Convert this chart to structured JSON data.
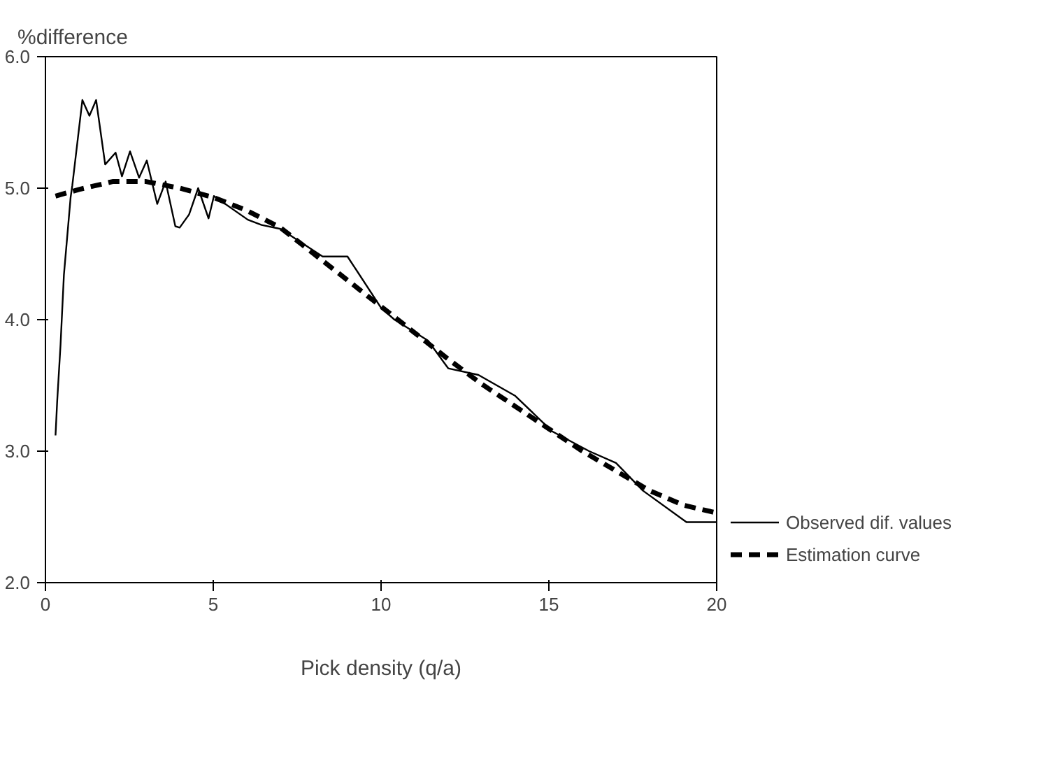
{
  "chart_data": {
    "type": "line",
    "xlabel": "Pick density (q/a)",
    "ylabel": "%difference",
    "xlim": [
      0,
      20
    ],
    "xticks": [
      0,
      5,
      10,
      15,
      20
    ],
    "ylim": [
      2,
      6
    ],
    "yticks": [
      {
        "value": 2,
        "label": "2.0"
      },
      {
        "value": 3,
        "label": "3.0"
      },
      {
        "value": 4,
        "label": "4.0"
      },
      {
        "value": 5,
        "label": "5.0"
      },
      {
        "value": 6,
        "label": "6.0"
      }
    ],
    "grid": false,
    "legend": "right",
    "marker": "none",
    "series": [
      {
        "name": "Observed dif. values",
        "color": "#000000",
        "line_style": "solid",
        "x": [
          0.3,
          0.35,
          0.45,
          0.55,
          0.75,
          0.8,
          1.1,
          1.31,
          1.51,
          1.78,
          2.09,
          2.28,
          2.52,
          2.79,
          3.02,
          3.33,
          3.58,
          3.87,
          4.0,
          4.28,
          4.55,
          4.86,
          5.02,
          6.03,
          6.44,
          7.0,
          8.26,
          9.0,
          10.0,
          10.4,
          11.4,
          12.0,
          12.9,
          14.0,
          15.1,
          16.2,
          17.0,
          17.8,
          19.1,
          20.0
        ],
        "values": [
          3.12,
          3.38,
          3.81,
          4.34,
          4.93,
          5.02,
          5.67,
          5.55,
          5.67,
          5.18,
          5.27,
          5.09,
          5.28,
          5.08,
          5.21,
          4.88,
          5.05,
          4.71,
          4.7,
          4.8,
          5.0,
          4.77,
          4.94,
          4.76,
          4.72,
          4.69,
          4.48,
          4.48,
          4.09,
          4.0,
          3.84,
          3.63,
          3.58,
          3.42,
          3.15,
          3.0,
          2.91,
          2.7,
          2.46,
          2.46
        ]
      },
      {
        "name": "Estimation curve",
        "color": "#000000",
        "line_style": "dashed",
        "x": [
          0.3,
          1,
          2,
          3,
          4,
          5,
          6,
          7,
          8,
          9,
          10,
          11,
          12,
          13,
          14,
          15,
          16,
          17,
          18,
          19,
          20
        ],
        "values": [
          4.94,
          4.99,
          5.05,
          5.05,
          5.0,
          4.93,
          4.83,
          4.7,
          4.5,
          4.3,
          4.1,
          3.9,
          3.7,
          3.51,
          3.34,
          3.17,
          3.0,
          2.85,
          2.7,
          2.59,
          2.53
        ]
      }
    ]
  }
}
